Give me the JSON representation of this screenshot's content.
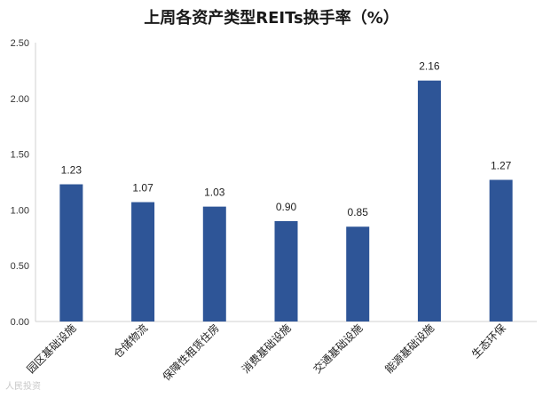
{
  "chart_data": {
    "type": "bar",
    "title": "上周各资产类型REITs换手率（%）",
    "categories": [
      "园区基础设施",
      "仓储物流",
      "保障性租赁住房",
      "消费基础设施",
      "交通基础设施",
      "能源基础设施",
      "生态环保"
    ],
    "values": [
      1.23,
      1.07,
      1.03,
      0.9,
      0.85,
      2.16,
      1.27
    ],
    "data_labels": [
      "1.23",
      "1.07",
      "1.03",
      "0.90",
      "0.85",
      "2.16",
      "1.27"
    ],
    "y_ticks": [
      "0.00",
      "0.50",
      "1.00",
      "1.50",
      "2.00",
      "2.50"
    ],
    "ylim": [
      0,
      2.5
    ],
    "xlabel": "",
    "ylabel": "",
    "grid": false,
    "bar_color": "#2e5597"
  },
  "watermark": "人民投资"
}
